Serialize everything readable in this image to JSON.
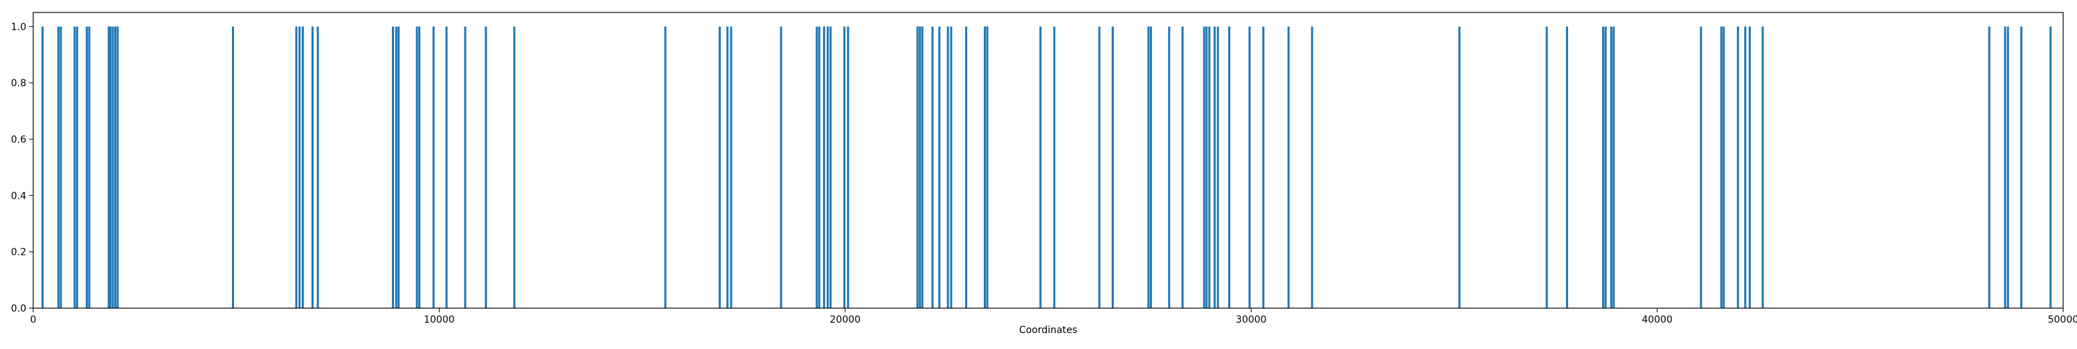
{
  "chart_data": {
    "type": "bar",
    "title": "",
    "xlabel": "Coordinates",
    "ylabel": "",
    "xlim": [
      0,
      50000
    ],
    "ylim": [
      0,
      1.05
    ],
    "grid": false,
    "bar_color": "#1f77b4",
    "x_ticks": [
      0,
      10000,
      20000,
      30000,
      40000,
      50000
    ],
    "x_tick_labels": [
      "0",
      "10000",
      "20000",
      "30000",
      "40000",
      "50000"
    ],
    "y_ticks": [
      0.0,
      0.2,
      0.4,
      0.6,
      0.8,
      1.0
    ],
    "y_tick_labels": [
      "0.0",
      "0.2",
      "0.4",
      "0.6",
      "0.8",
      "1.0"
    ],
    "x": [
      230,
      620,
      680,
      1020,
      1080,
      1320,
      1380,
      1860,
      1900,
      1960,
      2020,
      2080,
      4920,
      6480,
      6560,
      6640,
      6880,
      7010,
      8860,
      8940,
      9000,
      9450,
      9510,
      9860,
      10180,
      10640,
      11150,
      11850,
      15570,
      16910,
      17100,
      17190,
      18420,
      19300,
      19360,
      19480,
      19570,
      19640,
      19980,
      20070,
      21780,
      21840,
      21900,
      22150,
      22320,
      22530,
      22610,
      22980,
      23440,
      23500,
      24810,
      25150,
      26260,
      26590,
      27470,
      27530,
      27980,
      28310,
      28840,
      28900,
      28970,
      29100,
      29180,
      29460,
      29960,
      30300,
      30920,
      31500,
      35130,
      37280,
      37780,
      38670,
      38730,
      38870,
      38930,
      41080,
      41580,
      41640,
      41990,
      42170,
      42280,
      42600,
      48180,
      48570,
      48640,
      48970,
      49690
    ],
    "values_note": "",
    "values": null
  }
}
